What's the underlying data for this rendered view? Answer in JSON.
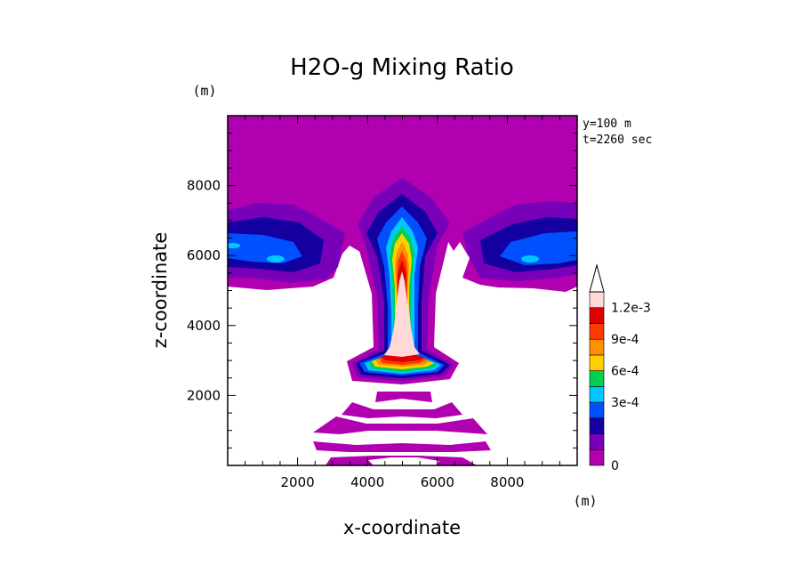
{
  "chart_data": {
    "type": "heatmap",
    "title": "H2O-g Mixing Ratio",
    "xlabel": "x-coordinate",
    "ylabel": "z-coordinate",
    "x_unit": "(m)",
    "y_unit": "(m)",
    "annotations": [
      "y=100 m",
      "t=2260 sec"
    ],
    "xlim": [
      0,
      10000
    ],
    "ylim": [
      0,
      10000
    ],
    "x_ticks": [
      2000,
      4000,
      6000,
      8000
    ],
    "y_ticks": [
      2000,
      4000,
      6000,
      8000
    ],
    "x_tick_labels": [
      "2000",
      "4000",
      "6000",
      "8000"
    ],
    "y_tick_labels": [
      "2000",
      "4000",
      "6000",
      "8000"
    ],
    "colorbar": {
      "levels": [
        0,
        0.00015,
        0.0003,
        0.00045,
        0.0006,
        0.00075,
        0.0009,
        0.00105,
        0.0012
      ],
      "colors": [
        "#b000b0",
        "#7800b8",
        "#1400a0",
        "#0050ff",
        "#00c8ff",
        "#00d050",
        "#ffd000",
        "#ff9000",
        "#ff3c00",
        "#e00000",
        "#ffd8d8"
      ],
      "tick_labels": [
        "0",
        "3e-4",
        "6e-4",
        "9e-4",
        "1.2e-3"
      ],
      "tick_values": [
        0,
        0.0003,
        0.0006,
        0.0009,
        0.0012
      ]
    },
    "regions": [
      {
        "name": "upper moist layer",
        "x": [
          0,
          10000
        ],
        "z": [
          5000,
          10000
        ],
        "value_range": [
          0,
          0.0004
        ]
      },
      {
        "name": "central cloud plume",
        "x": [
          3600,
          6400
        ],
        "z": [
          2600,
          8600
        ],
        "value_range": [
          0,
          0.0012
        ],
        "core_max_x": 5000,
        "core_max_z": 4000
      },
      {
        "name": "low-level wave bands",
        "x": [
          2400,
          7400
        ],
        "z": [
          0,
          2100
        ],
        "value_range": [
          0,
          0.00015
        ]
      }
    ]
  }
}
